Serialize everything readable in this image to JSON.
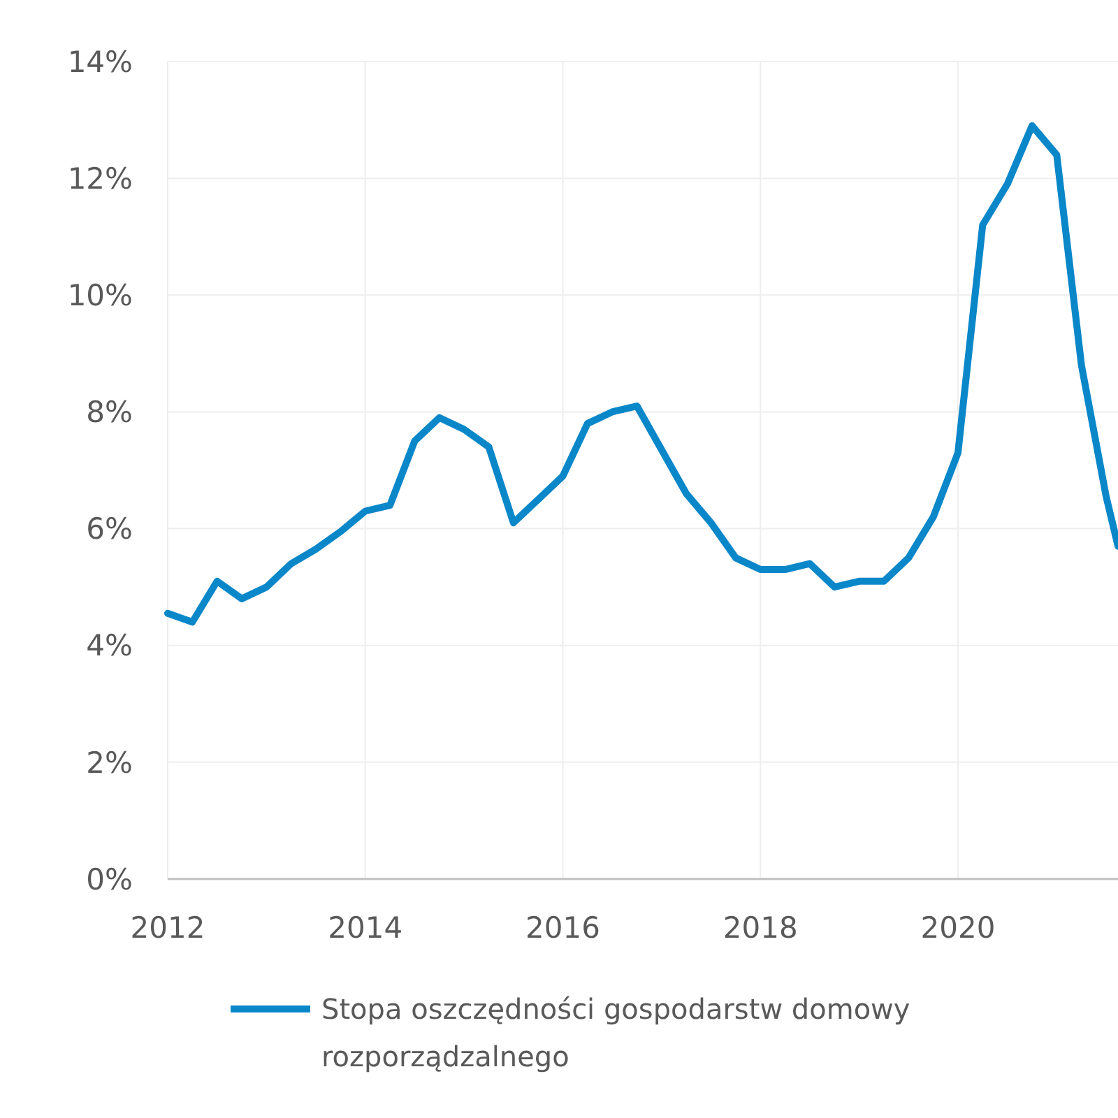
{
  "chart_data": {
    "type": "line",
    "x": [
      2012,
      2012.25,
      2012.5,
      2012.75,
      2013,
      2013.25,
      2013.5,
      2013.75,
      2014,
      2014.25,
      2014.5,
      2014.75,
      2015,
      2015.25,
      2015.5,
      2015.75,
      2016,
      2016.25,
      2016.5,
      2016.75,
      2017,
      2017.25,
      2017.5,
      2017.75,
      2018,
      2018.25,
      2018.5,
      2018.75,
      2019,
      2019.25,
      2019.5,
      2019.75,
      2020,
      2020.25,
      2020.5,
      2020.75,
      2021,
      2021.25,
      2021.5,
      2021.62
    ],
    "series": [
      {
        "name": "Stopa oszczędności gospodarstw domowy\nrozporządzalnego",
        "color": "#0a87c9",
        "values": [
          4.55,
          4.4,
          5.1,
          4.8,
          5.0,
          5.4,
          5.65,
          5.95,
          6.3,
          6.4,
          7.5,
          7.9,
          7.7,
          7.4,
          6.1,
          6.5,
          6.9,
          7.8,
          8.0,
          8.1,
          7.35,
          6.6,
          6.1,
          5.5,
          5.3,
          5.3,
          5.4,
          5.0,
          5.1,
          5.1,
          5.5,
          6.2,
          7.3,
          11.2,
          11.9,
          12.9,
          12.4,
          8.8,
          6.55,
          5.7
        ]
      }
    ],
    "xlim": [
      2012,
      2021.62
    ],
    "xticks": [
      2012,
      2014,
      2016,
      2018,
      2020
    ],
    "ylim": [
      0,
      14
    ],
    "yticks": [
      {
        "value": 0,
        "label": "0%"
      },
      {
        "value": 2,
        "label": "2%"
      },
      {
        "value": 4,
        "label": "4%"
      },
      {
        "value": 6,
        "label": "6%"
      },
      {
        "value": 8,
        "label": "8%"
      },
      {
        "value": 10,
        "label": "10%"
      },
      {
        "value": 12,
        "label": "12%"
      },
      {
        "value": 14,
        "label": "14%"
      }
    ],
    "grid": true,
    "legend": "bottom",
    "marker": "none",
    "line_style": "solid"
  }
}
